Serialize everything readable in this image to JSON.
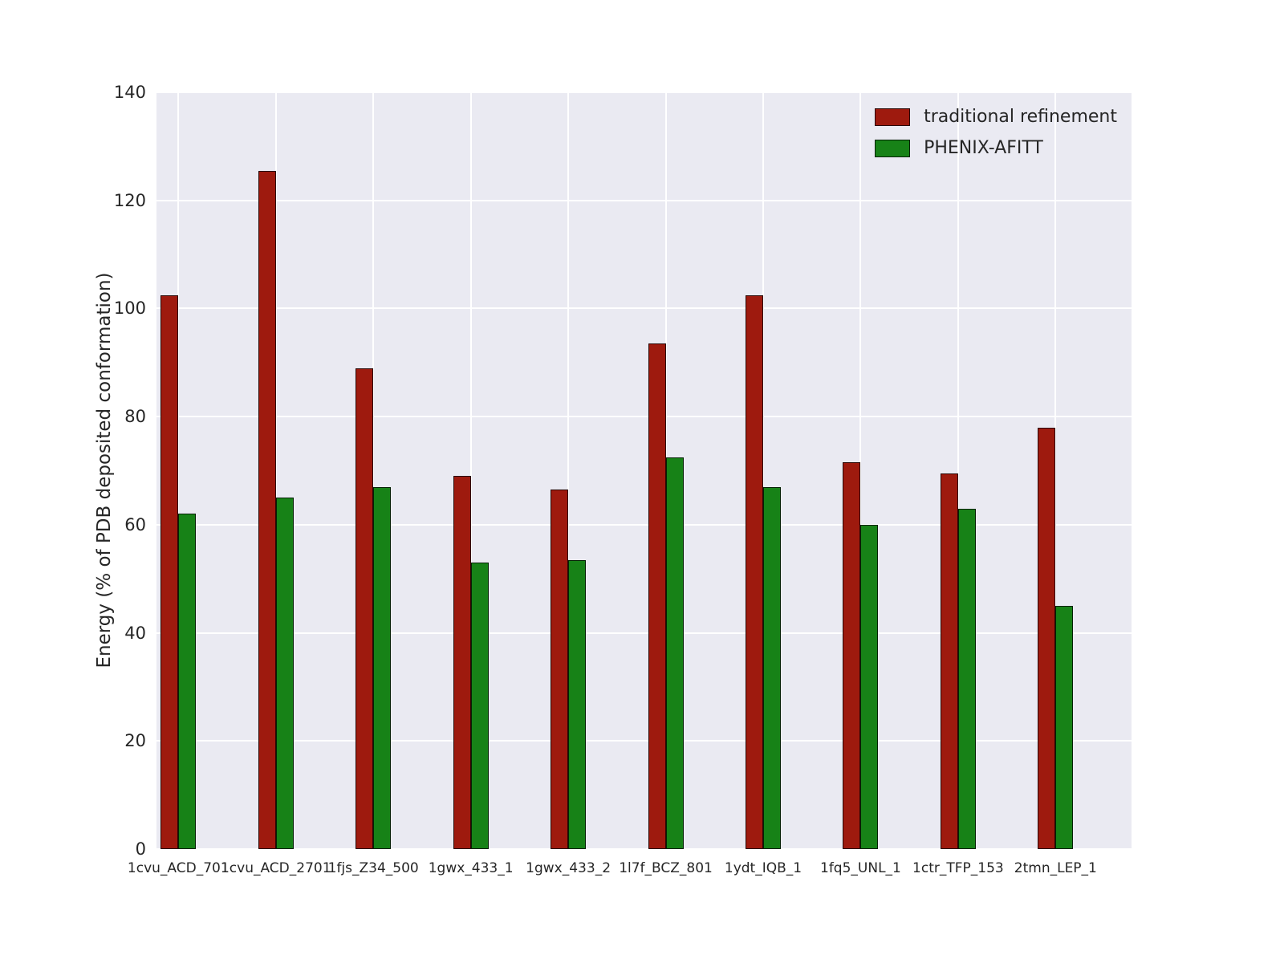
{
  "figure": {
    "background_color": "#ffffff",
    "plot_background_color": "#eaeaf2",
    "grid_color": "#ffffff",
    "text_color": "#262626"
  },
  "chart_data": {
    "type": "bar",
    "title": "",
    "xlabel": "",
    "ylabel": "Energy (% of PDB deposited conformation)",
    "ylim": [
      0,
      140
    ],
    "yticks": [
      0,
      20,
      40,
      60,
      80,
      100,
      120,
      140
    ],
    "grid": true,
    "legend_position": "upper right",
    "categories": [
      "1cvu_ACD_701",
      "1cvu_ACD_2701",
      "1fjs_Z34_500",
      "1gwx_433_1",
      "1gwx_433_2",
      "1l7f_BCZ_801",
      "1ydt_IQB_1",
      "1fq5_UNL_1",
      "1ctr_TFP_153",
      "2tmn_LEP_1"
    ],
    "series": [
      {
        "name": "traditional refinement",
        "color": "#9e1a0e",
        "values": [
          102.5,
          125.5,
          89,
          69,
          66.5,
          93.5,
          102.5,
          71.5,
          69.5,
          78
        ]
      },
      {
        "name": "PHENIX-AFITT",
        "color": "#178217",
        "values": [
          62,
          65,
          67,
          53,
          53.5,
          72.5,
          67,
          60,
          63,
          45
        ]
      }
    ]
  }
}
